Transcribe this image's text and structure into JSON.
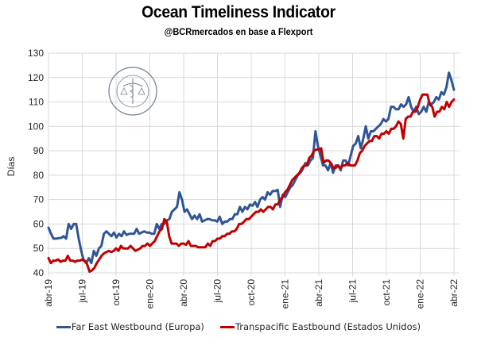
{
  "chart_data": {
    "type": "line",
    "title": "Ocean Timeliness Indicator",
    "subtitle": "@BCRmercados en base a Flexport",
    "xlabel": "",
    "ylabel": "Días",
    "ylim": [
      40,
      130
    ],
    "yticks": [
      40,
      50,
      60,
      70,
      80,
      90,
      100,
      110,
      120,
      130
    ],
    "xlim_weeks": [
      0,
      157
    ],
    "xtick_labels": [
      "abr-19",
      "jul-19",
      "oct-19",
      "ene-20",
      "abr-20",
      "jul-20",
      "oct-20",
      "ene-21",
      "abr-21",
      "jul-21",
      "oct-21",
      "ene-22",
      "abr-22"
    ],
    "xtick_weeks": [
      0,
      13,
      26,
      39,
      52,
      65,
      78,
      91,
      104,
      117,
      130,
      143,
      156
    ],
    "grid": true,
    "legend_position": "bottom",
    "watermark": "Bolsa de Comercio de Rosario",
    "series": [
      {
        "name": "Far East Westbound (Europa)",
        "color": "#2F5597",
        "values": [
          58.5,
          56,
          54,
          54,
          54.2,
          54.3,
          55,
          54,
          60,
          58,
          60,
          60,
          54,
          49,
          45,
          44,
          46,
          44,
          49,
          47,
          50,
          51,
          56,
          57,
          56,
          55,
          56.5,
          54.5,
          56,
          55,
          57,
          55.5,
          56,
          56,
          56,
          58,
          56,
          56.5,
          57,
          56.5,
          56.5,
          56,
          56,
          60,
          58,
          60,
          60,
          61.5,
          62,
          65,
          66,
          67,
          73,
          70,
          65,
          66,
          64,
          62,
          63.5,
          62,
          64,
          61,
          61.5,
          62,
          62,
          61.5,
          61.5,
          61,
          63,
          60,
          61,
          61,
          62,
          62,
          64,
          64,
          67,
          65,
          67,
          66,
          68,
          67.5,
          69,
          67,
          70,
          71,
          70,
          73,
          72,
          73.5,
          73.5,
          74,
          67,
          72,
          71,
          73,
          75,
          76,
          78,
          80,
          81,
          82.5,
          85,
          84,
          86,
          87,
          98,
          92,
          88,
          84,
          84,
          82,
          85,
          81,
          84,
          84,
          82,
          86,
          86,
          84,
          88,
          92,
          93,
          96,
          91,
          95,
          100,
          95,
          98,
          98,
          99,
          100,
          101,
          103,
          102,
          103,
          108,
          108,
          107,
          107,
          109,
          108,
          109,
          112,
          108,
          106,
          108,
          105,
          106,
          108,
          106,
          110,
          109,
          110,
          112,
          111,
          114,
          113,
          116,
          122,
          119,
          115
        ],
        "values_note": "weekly approximation, week 0 = abr-19"
      },
      {
        "name": "Transpacific Eastbound (Estados Unidos)",
        "color": "#C00000",
        "values": [
          46,
          44,
          45,
          45,
          45.5,
          44.5,
          45,
          45,
          47,
          45,
          45,
          44.5,
          45,
          45,
          45.5,
          45,
          43.5,
          40.5,
          41,
          42,
          44,
          45.5,
          47,
          48,
          48.5,
          49,
          48.5,
          49,
          50,
          49,
          51,
          50,
          50,
          50,
          51,
          50,
          49,
          49.5,
          50,
          51,
          51,
          52,
          51,
          52,
          53,
          55,
          57,
          58,
          62,
          61,
          55,
          52,
          52,
          52,
          51,
          52,
          52,
          51.5,
          53,
          51,
          51,
          51,
          50.5,
          50.5,
          50.5,
          50.5,
          52,
          51,
          53,
          53,
          54,
          54,
          55,
          55,
          56,
          56,
          57,
          57,
          58,
          60,
          60,
          61,
          62,
          62,
          63,
          64,
          65,
          65,
          66,
          65,
          66,
          67,
          67,
          66,
          68,
          68,
          70,
          71,
          73,
          74,
          76,
          78,
          79,
          80,
          81,
          83,
          84,
          84,
          87,
          88,
          90,
          90.5,
          90.5,
          91,
          85,
          86,
          86,
          85,
          83,
          83,
          84,
          83,
          84,
          84,
          85,
          84,
          84,
          84,
          86,
          89,
          90,
          92,
          93,
          94,
          94,
          96,
          96,
          95,
          97,
          97,
          98,
          97,
          99,
          99,
          100,
          102,
          101,
          95,
          103,
          104,
          104,
          106,
          106,
          108,
          111,
          113,
          113,
          113,
          109,
          108,
          104,
          106,
          106,
          108,
          107,
          110,
          108,
          110,
          111
        ],
        "values_note": "weekly approximation, week 0 = abr-19"
      }
    ]
  }
}
